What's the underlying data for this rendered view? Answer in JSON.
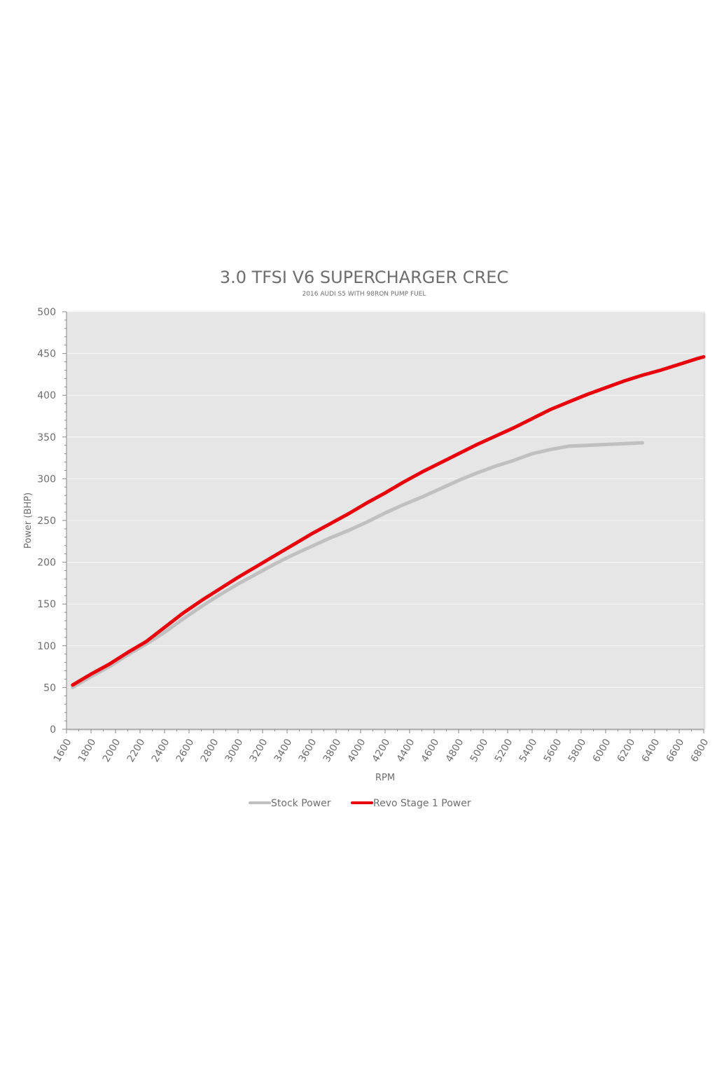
{
  "chart_data": {
    "type": "line",
    "title": "3.0 TFSI V6 SUPERCHARGER CREC",
    "subtitle": "2016 AUDI S5 WITH 98RON PUMP FUEL",
    "xlabel": "RPM",
    "ylabel": "Power (BHP)",
    "xlim": [
      1600,
      6800
    ],
    "ylim": [
      0,
      500
    ],
    "x_ticks": [
      "1600",
      "1800",
      "2000",
      "2200",
      "2400",
      "2600",
      "2800",
      "3000",
      "3200",
      "3400",
      "3600",
      "3800",
      "4000",
      "4200",
      "4400",
      "4600",
      "4800",
      "5000",
      "5200",
      "5400",
      "5600",
      "5800",
      "6000",
      "6200",
      "6400",
      "6600",
      "6800"
    ],
    "y_ticks": [
      "0",
      "50",
      "100",
      "150",
      "200",
      "250",
      "300",
      "350",
      "400",
      "450",
      "500"
    ],
    "grid": true,
    "legend_position": "bottom-center",
    "colors": {
      "plot_background": "#e6e6e6",
      "gridline": "#f7f7f7",
      "axis": "#8a8a8a",
      "text": "#6e6e6e"
    },
    "series": [
      {
        "name": "Stock Power",
        "color": "#c0c0c0",
        "x": [
          1650,
          1800,
          1950,
          2100,
          2250,
          2400,
          2550,
          2700,
          2850,
          3000,
          3150,
          3300,
          3450,
          3600,
          3750,
          3900,
          4050,
          4200,
          4350,
          4500,
          4650,
          4800,
          4950,
          5100,
          5250,
          5400,
          5550,
          5700,
          5850,
          6000,
          6150,
          6300
        ],
        "y": [
          50,
          63,
          75,
          89,
          102,
          116,
          132,
          147,
          161,
          174,
          186,
          198,
          209,
          219,
          229,
          238,
          248,
          259,
          269,
          278,
          288,
          298,
          307,
          315,
          322,
          330,
          335,
          339,
          340,
          341,
          342,
          343
        ]
      },
      {
        "name": "Revo Stage 1 Power",
        "color": "#e8000d",
        "x": [
          1650,
          1800,
          1950,
          2100,
          2250,
          2400,
          2550,
          2700,
          2850,
          3000,
          3150,
          3300,
          3450,
          3600,
          3750,
          3900,
          4050,
          4200,
          4350,
          4500,
          4650,
          4800,
          4950,
          5100,
          5250,
          5400,
          5550,
          5700,
          5850,
          6000,
          6150,
          6300,
          6450,
          6600,
          6750,
          6800
        ],
        "y": [
          53,
          66,
          78,
          92,
          105,
          122,
          139,
          154,
          168,
          182,
          195,
          208,
          221,
          234,
          246,
          258,
          271,
          283,
          296,
          308,
          319,
          330,
          341,
          351,
          361,
          372,
          383,
          392,
          401,
          409,
          417,
          424,
          430,
          437,
          444,
          446
        ]
      }
    ]
  }
}
